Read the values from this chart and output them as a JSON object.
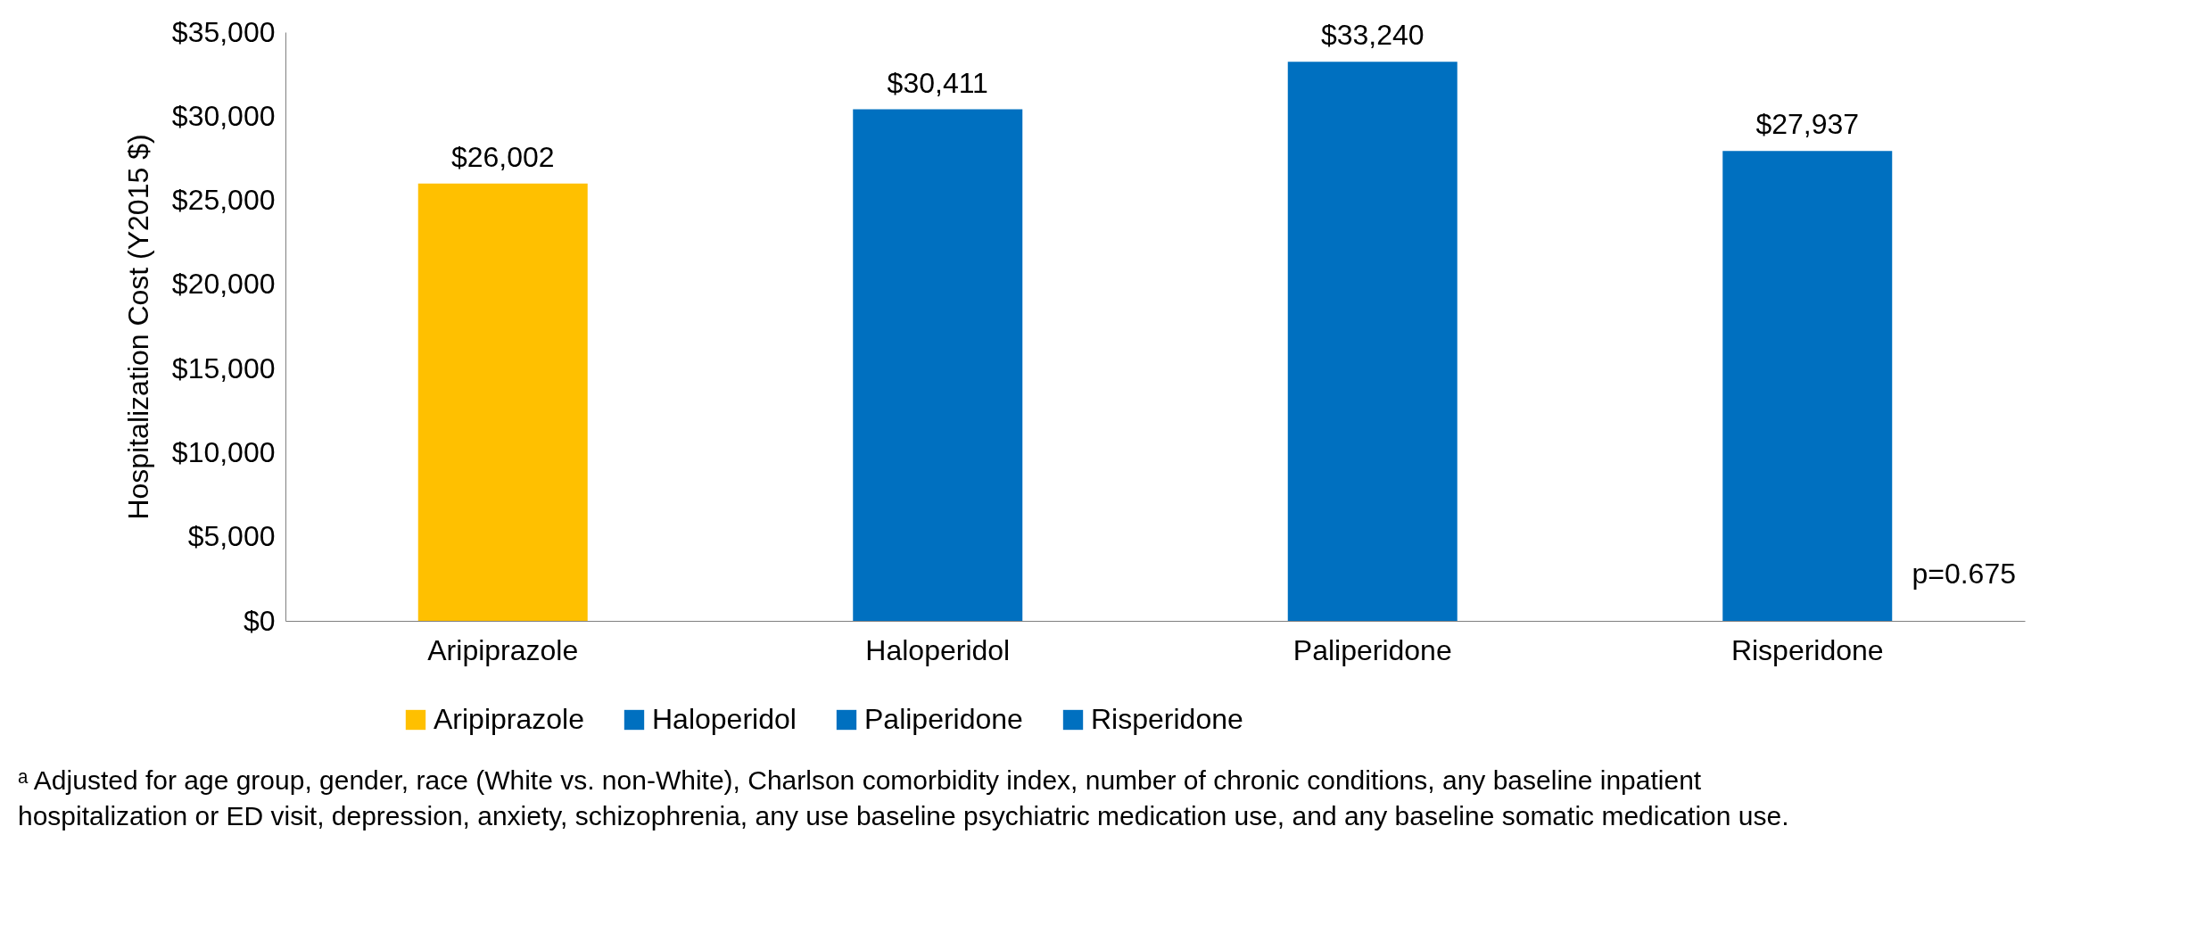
{
  "chart_data": {
    "type": "bar",
    "ylabel": "Hospitalization Cost (Y2015 $)",
    "categories": [
      "Aripiprazole",
      "Haloperidol",
      "Paliperidone",
      "Risperidone"
    ],
    "series": [
      {
        "name": "Aripiprazole",
        "color": "#ffc000",
        "values": [
          26002,
          null,
          null,
          null
        ],
        "value_labels": [
          "$26,002",
          null,
          null,
          null
        ]
      },
      {
        "name": "Haloperidol",
        "color": "#0070c0",
        "values": [
          null,
          30411,
          null,
          null
        ],
        "value_labels": [
          null,
          "$30,411",
          null,
          null
        ]
      },
      {
        "name": "Paliperidone",
        "color": "#0070c0",
        "values": [
          null,
          null,
          33240,
          null
        ],
        "value_labels": [
          null,
          null,
          "$33,240",
          null
        ]
      },
      {
        "name": "Risperidone",
        "color": "#0070c0",
        "values": [
          null,
          null,
          null,
          27937
        ],
        "value_labels": [
          null,
          null,
          null,
          "$27,937"
        ]
      }
    ],
    "ylim": [
      0,
      35000
    ],
    "yticks": [
      {
        "value": 0,
        "label": "$0"
      },
      {
        "value": 5000,
        "label": "$5,000"
      },
      {
        "value": 10000,
        "label": "$10,000"
      },
      {
        "value": 15000,
        "label": "$15,000"
      },
      {
        "value": 20000,
        "label": "$20,000"
      },
      {
        "value": 25000,
        "label": "$25,000"
      },
      {
        "value": 30000,
        "label": "$30,000"
      },
      {
        "value": 35000,
        "label": "$35,000"
      }
    ],
    "grid": false,
    "legend": "bottom",
    "annotations": [
      "p=0.675",
      "ᵃ Adjusted for age group, gender, race (White vs. non-White), Charlson comorbidity index, number of chronic conditions, any baseline inpatient hospitalization or ED visit, depression, anxiety, schizophrenia, any use baseline psychiatric medication use, and any baseline somatic medication use."
    ]
  }
}
